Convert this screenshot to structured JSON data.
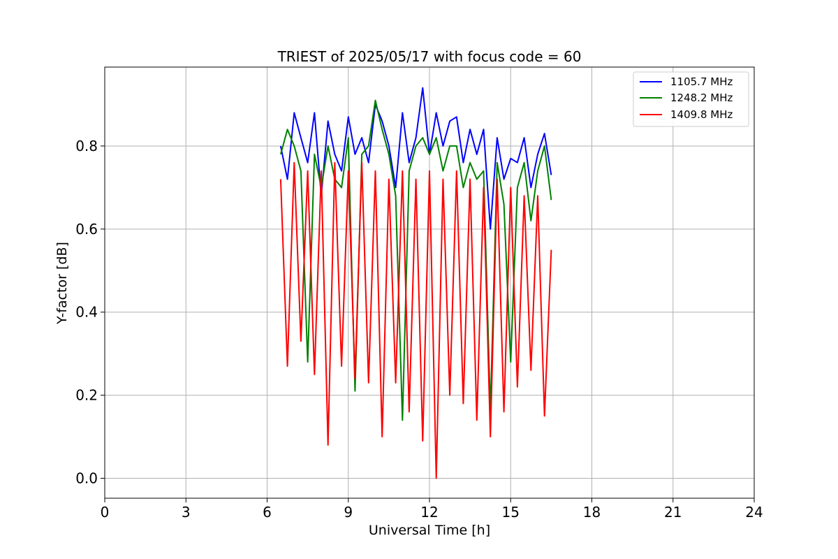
{
  "chart_data": {
    "type": "line",
    "title": "TRIEST of 2025/05/17 with focus code = 60",
    "xlabel": "Universal Time [h]",
    "ylabel": "Y-factor [dB]",
    "xlim": [
      0,
      24
    ],
    "ylim": [
      -0.048,
      0.99
    ],
    "x_ticks": [
      "0",
      "3",
      "6",
      "9",
      "12",
      "15",
      "18",
      "21",
      "24"
    ],
    "y_ticks": [
      "0.0",
      "0.2",
      "0.4",
      "0.6",
      "0.8"
    ],
    "grid": true,
    "legend_position": "top-right",
    "x_range_of_data": [
      6.5,
      16.5
    ],
    "series": [
      {
        "name": "1105.7 MHz",
        "color": "#0000ff",
        "x": [
          6.5,
          6.75,
          7.0,
          7.25,
          7.5,
          7.75,
          8.0,
          8.25,
          8.5,
          8.75,
          9.0,
          9.25,
          9.5,
          9.75,
          10.0,
          10.25,
          10.5,
          10.75,
          11.0,
          11.25,
          11.5,
          11.75,
          12.0,
          12.25,
          12.5,
          12.75,
          13.0,
          13.25,
          13.5,
          13.75,
          14.0,
          14.25,
          14.5,
          14.75,
          15.0,
          15.25,
          15.5,
          15.75,
          16.0,
          16.25,
          16.5
        ],
        "y": [
          0.8,
          0.72,
          0.88,
          0.82,
          0.76,
          0.88,
          0.68,
          0.86,
          0.78,
          0.74,
          0.87,
          0.78,
          0.82,
          0.76,
          0.9,
          0.86,
          0.8,
          0.7,
          0.88,
          0.76,
          0.82,
          0.94,
          0.78,
          0.88,
          0.8,
          0.86,
          0.87,
          0.76,
          0.84,
          0.78,
          0.84,
          0.6,
          0.82,
          0.72,
          0.77,
          0.76,
          0.82,
          0.7,
          0.78,
          0.83,
          0.73
        ]
      },
      {
        "name": "1248.2 MHz",
        "color": "#008000",
        "x": [
          6.5,
          6.75,
          7.0,
          7.25,
          7.5,
          7.75,
          8.0,
          8.25,
          8.5,
          8.75,
          9.0,
          9.25,
          9.5,
          9.75,
          10.0,
          10.25,
          10.5,
          10.75,
          11.0,
          11.25,
          11.5,
          11.75,
          12.0,
          12.25,
          12.5,
          12.75,
          13.0,
          13.25,
          13.5,
          13.75,
          14.0,
          14.25,
          14.5,
          14.75,
          15.0,
          15.25,
          15.5,
          15.75,
          16.0,
          16.25,
          16.5
        ],
        "y": [
          0.78,
          0.84,
          0.8,
          0.74,
          0.28,
          0.78,
          0.7,
          0.8,
          0.72,
          0.7,
          0.82,
          0.21,
          0.78,
          0.8,
          0.91,
          0.84,
          0.78,
          0.68,
          0.14,
          0.74,
          0.8,
          0.82,
          0.78,
          0.82,
          0.74,
          0.8,
          0.8,
          0.7,
          0.76,
          0.72,
          0.74,
          0.16,
          0.76,
          0.66,
          0.28,
          0.7,
          0.76,
          0.62,
          0.74,
          0.8,
          0.67
        ]
      },
      {
        "name": "1409.8 MHz",
        "color": "#ff0000",
        "x": [
          6.5,
          6.75,
          7.0,
          7.25,
          7.5,
          7.75,
          8.0,
          8.25,
          8.5,
          8.75,
          9.0,
          9.25,
          9.5,
          9.75,
          10.0,
          10.25,
          10.5,
          10.75,
          11.0,
          11.25,
          11.5,
          11.75,
          12.0,
          12.25,
          12.5,
          12.75,
          13.0,
          13.25,
          13.5,
          13.75,
          14.0,
          14.25,
          14.5,
          14.75,
          15.0,
          15.25,
          15.5,
          15.75,
          16.0,
          16.25,
          16.5
        ],
        "y": [
          0.72,
          0.27,
          0.76,
          0.33,
          0.74,
          0.25,
          0.74,
          0.08,
          0.76,
          0.27,
          0.74,
          0.24,
          0.76,
          0.23,
          0.74,
          0.1,
          0.72,
          0.23,
          0.74,
          0.16,
          0.72,
          0.09,
          0.74,
          0.0,
          0.72,
          0.2,
          0.74,
          0.18,
          0.72,
          0.14,
          0.7,
          0.1,
          0.72,
          0.16,
          0.7,
          0.22,
          0.68,
          0.26,
          0.68,
          0.15,
          0.55
        ]
      }
    ]
  }
}
